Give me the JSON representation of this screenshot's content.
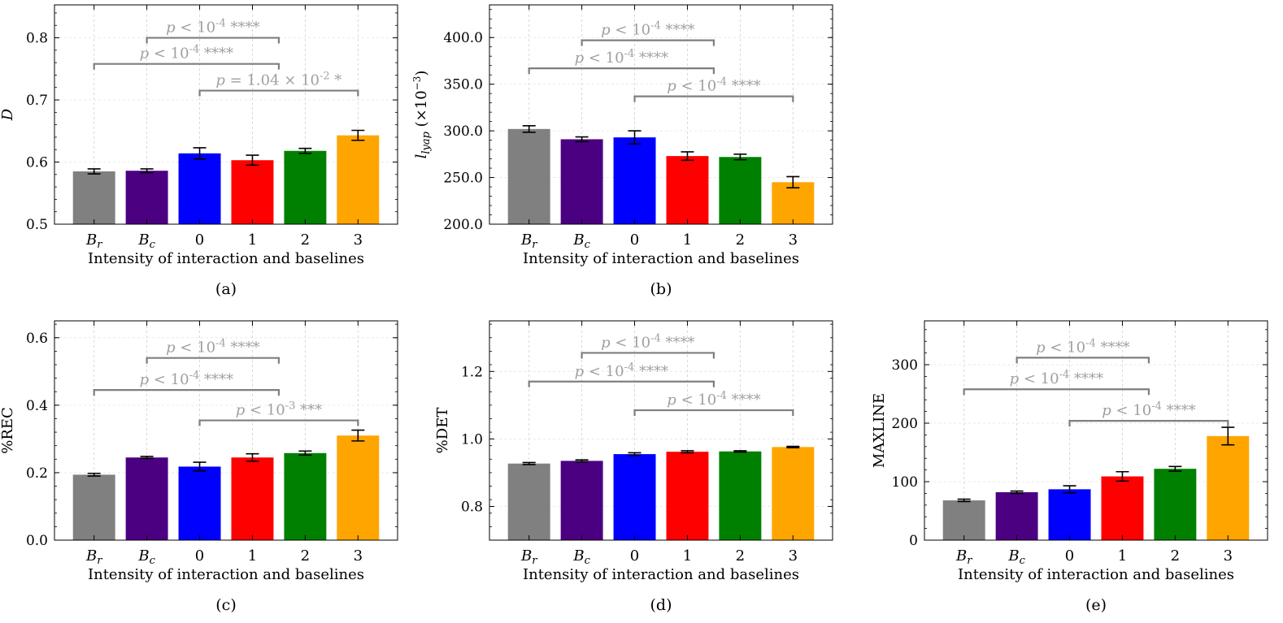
{
  "colors": {
    "bars": [
      "#808080",
      "#4b0082",
      "#0000ff",
      "#ff0000",
      "#008000",
      "#ffa500"
    ],
    "annotation": "#a0a0a0",
    "bracket": "#7f7f7f",
    "grid": "#cfcfcf"
  },
  "chart_data": [
    {
      "id": "a",
      "type": "bar",
      "caption": "(a)",
      "xlabel": "Intensity of interaction and baselines",
      "ylabel": "D",
      "ylabel_math": true,
      "categories": [
        {
          "base": "B",
          "sub": "r"
        },
        {
          "base": "B",
          "sub": "c"
        },
        {
          "base": "0"
        },
        {
          "base": "1"
        },
        {
          "base": "2"
        },
        {
          "base": "3"
        }
      ],
      "values": [
        0.585,
        0.586,
        0.614,
        0.603,
        0.618,
        0.643
      ],
      "errors": [
        0.004,
        0.003,
        0.009,
        0.008,
        0.004,
        0.008
      ],
      "ylim": [
        0.5,
        0.853
      ],
      "yticks": [
        0.5,
        0.6,
        0.7,
        0.8
      ],
      "yticklabels": [
        "0.5",
        "0.6",
        "0.7",
        "0.8"
      ],
      "annotations": [
        {
          "from": 1,
          "to": 4,
          "y": 0.8,
          "text": "p < 10^{-4} ****"
        },
        {
          "from": 0,
          "to": 4,
          "y": 0.758,
          "text": "p < 10^{-4} ****"
        },
        {
          "from": 2,
          "to": 6,
          "y": 0.715,
          "text": "p = 1.04 × 10^{-2} *"
        }
      ]
    },
    {
      "id": "b",
      "type": "bar",
      "caption": "(b)",
      "xlabel": "Intensity of interaction and baselines",
      "ylabel": "l_lyap (×10^{-3})",
      "ylabel_math": true,
      "categories": [
        {
          "base": "B",
          "sub": "r"
        },
        {
          "base": "B",
          "sub": "c"
        },
        {
          "base": "0"
        },
        {
          "base": "1"
        },
        {
          "base": "2"
        },
        {
          "base": "3"
        }
      ],
      "values": [
        302,
        291,
        293,
        273,
        272,
        245
      ],
      "errors": [
        3.5,
        2.5,
        7,
        4.5,
        3,
        6
      ],
      "ylim": [
        200,
        435
      ],
      "yticks": [
        200,
        250,
        300,
        350,
        400
      ],
      "yticklabels": [
        "200.0",
        "250.0",
        "300.0",
        "350.0",
        "400.0"
      ],
      "annotations": [
        {
          "from": 1,
          "to": 4,
          "y": 397,
          "text": "p < 10^{-4} ****"
        },
        {
          "from": 0,
          "to": 4,
          "y": 367,
          "text": "p < 10^{-4} ****"
        },
        {
          "from": 2,
          "to": 6,
          "y": 337,
          "text": "p < 10^{-4} ****"
        }
      ]
    },
    {
      "id": "c",
      "type": "bar",
      "caption": "(c)",
      "xlabel": "Intensity of interaction and baselines",
      "ylabel": "%REC",
      "ylabel_math": false,
      "categories": [
        {
          "base": "B",
          "sub": "r"
        },
        {
          "base": "B",
          "sub": "c"
        },
        {
          "base": "0"
        },
        {
          "base": "1"
        },
        {
          "base": "2"
        },
        {
          "base": "3"
        }
      ],
      "values": [
        0.194,
        0.245,
        0.218,
        0.245,
        0.258,
        0.31
      ],
      "errors": [
        0.004,
        0.003,
        0.013,
        0.011,
        0.006,
        0.016
      ],
      "ylim": [
        0,
        0.65
      ],
      "yticks": [
        0,
        0.2,
        0.4,
        0.6
      ],
      "yticklabels": [
        "0.0",
        "0.2",
        "0.4",
        "0.6"
      ],
      "annotations": [
        {
          "from": 1,
          "to": 4,
          "y": 0.54,
          "text": "p < 10^{-4} ****"
        },
        {
          "from": 0,
          "to": 4,
          "y": 0.445,
          "text": "p < 10^{-4} ****"
        },
        {
          "from": 2,
          "to": 6,
          "y": 0.355,
          "text": "p < 10^{-3} ***"
        }
      ]
    },
    {
      "id": "d",
      "type": "bar",
      "caption": "(d)",
      "xlabel": "Intensity of interaction and baselines",
      "ylabel": "%DET",
      "ylabel_math": false,
      "categories": [
        {
          "base": "B",
          "sub": "r"
        },
        {
          "base": "B",
          "sub": "c"
        },
        {
          "base": "0"
        },
        {
          "base": "1"
        },
        {
          "base": "2"
        },
        {
          "base": "3"
        }
      ],
      "values": [
        0.927,
        0.935,
        0.955,
        0.962,
        0.963,
        0.976
      ],
      "errors": [
        0.003,
        0.003,
        0.004,
        0.003,
        0.002,
        0.002
      ],
      "ylim": [
        0.7,
        1.35
      ],
      "yticks": [
        0.8,
        1.0,
        1.2
      ],
      "yticklabels": [
        "0.8",
        "1.0",
        "1.2"
      ],
      "annotations": [
        {
          "from": 1,
          "to": 4,
          "y": 1.255,
          "text": "p < 10^{-4} ****"
        },
        {
          "from": 0,
          "to": 4,
          "y": 1.17,
          "text": "p < 10^{-4} ****"
        },
        {
          "from": 2,
          "to": 6,
          "y": 1.085,
          "text": "p < 10^{-4} ****"
        }
      ]
    },
    {
      "id": "e",
      "type": "bar",
      "caption": "(e)",
      "xlabel": "Intensity of interaction and baselines",
      "ylabel": "MAXLINE",
      "ylabel_math": false,
      "categories": [
        {
          "base": "B",
          "sub": "r"
        },
        {
          "base": "B",
          "sub": "c"
        },
        {
          "base": "0"
        },
        {
          "base": "1"
        },
        {
          "base": "2"
        },
        {
          "base": "3"
        }
      ],
      "values": [
        68,
        82,
        87,
        109,
        122,
        178
      ],
      "errors": [
        2,
        2,
        6,
        8,
        4,
        15
      ],
      "ylim": [
        0,
        375
      ],
      "yticks": [
        0,
        100,
        200,
        300
      ],
      "yticklabels": [
        "0",
        "100",
        "200",
        "300"
      ],
      "annotations": [
        {
          "from": 1,
          "to": 4,
          "y": 312,
          "text": "p < 10^{-4} ****"
        },
        {
          "from": 0,
          "to": 4,
          "y": 258,
          "text": "p < 10^{-4} ****"
        },
        {
          "from": 2,
          "to": 6,
          "y": 204,
          "text": "p < 10^{-4} ****"
        }
      ]
    }
  ]
}
